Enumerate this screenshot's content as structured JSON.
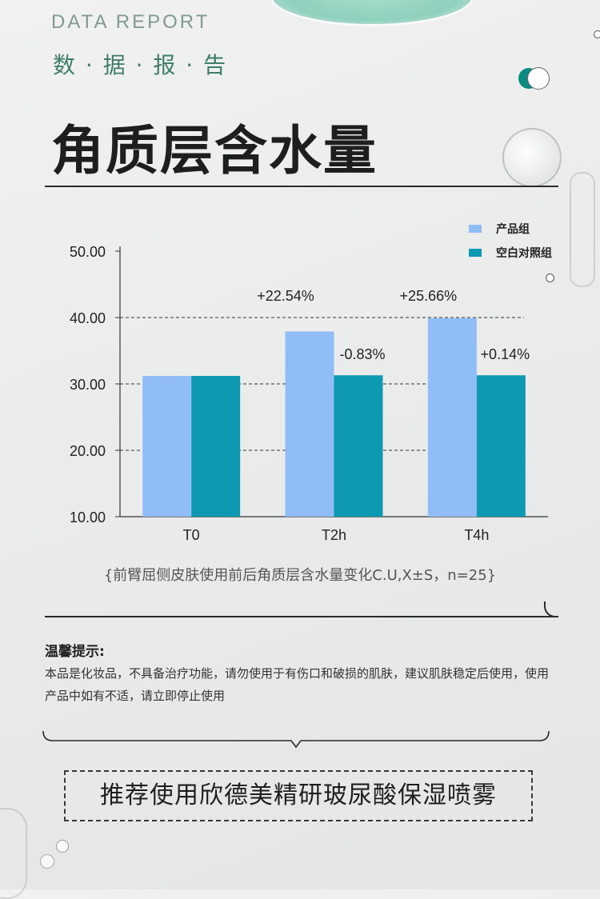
{
  "header": {
    "eyebrow": "DATA REPORT",
    "subtitle": "数 · 据 · 报 · 告",
    "title": "角质层含水量"
  },
  "chart_data": {
    "type": "bar",
    "categories": [
      "T0",
      "T2h",
      "T4h"
    ],
    "series": [
      {
        "name": "产品组",
        "color": "#91bdf7",
        "values": [
          31.2,
          37.9,
          39.9
        ]
      },
      {
        "name": "空白对照组",
        "color": "#0e99b3",
        "values": [
          31.2,
          31.3,
          31.3
        ]
      }
    ],
    "yticks": [
      "10.00",
      "20.00",
      "30.00",
      "40.00",
      "50.00"
    ],
    "ylim": [
      10,
      50
    ],
    "grid": "dashed",
    "legend_position": "top-right",
    "annotations": [
      {
        "category": "T2h",
        "series": "产品组",
        "text": "+22.54%"
      },
      {
        "category": "T2h",
        "series": "空白对照组",
        "text": "-0.83%"
      },
      {
        "category": "T4h",
        "series": "产品组",
        "text": "+25.66%"
      },
      {
        "category": "T4h",
        "series": "空白对照组",
        "text": "+0.14%"
      }
    ],
    "caption": "{前臂屈侧皮肤使用前后角质层含水量变化C.U,X±S，n=25}"
  },
  "notice": {
    "title": "温馨提示:",
    "body": "本品是化妆品，不具备治疗功能，请勿使用于有伤口和破损的肌肤，建议肌肤稳定后使用，使用产品中如有不适，请立即停止使用"
  },
  "recommendation": "推荐使用欣德美精研玻尿酸保湿喷雾"
}
